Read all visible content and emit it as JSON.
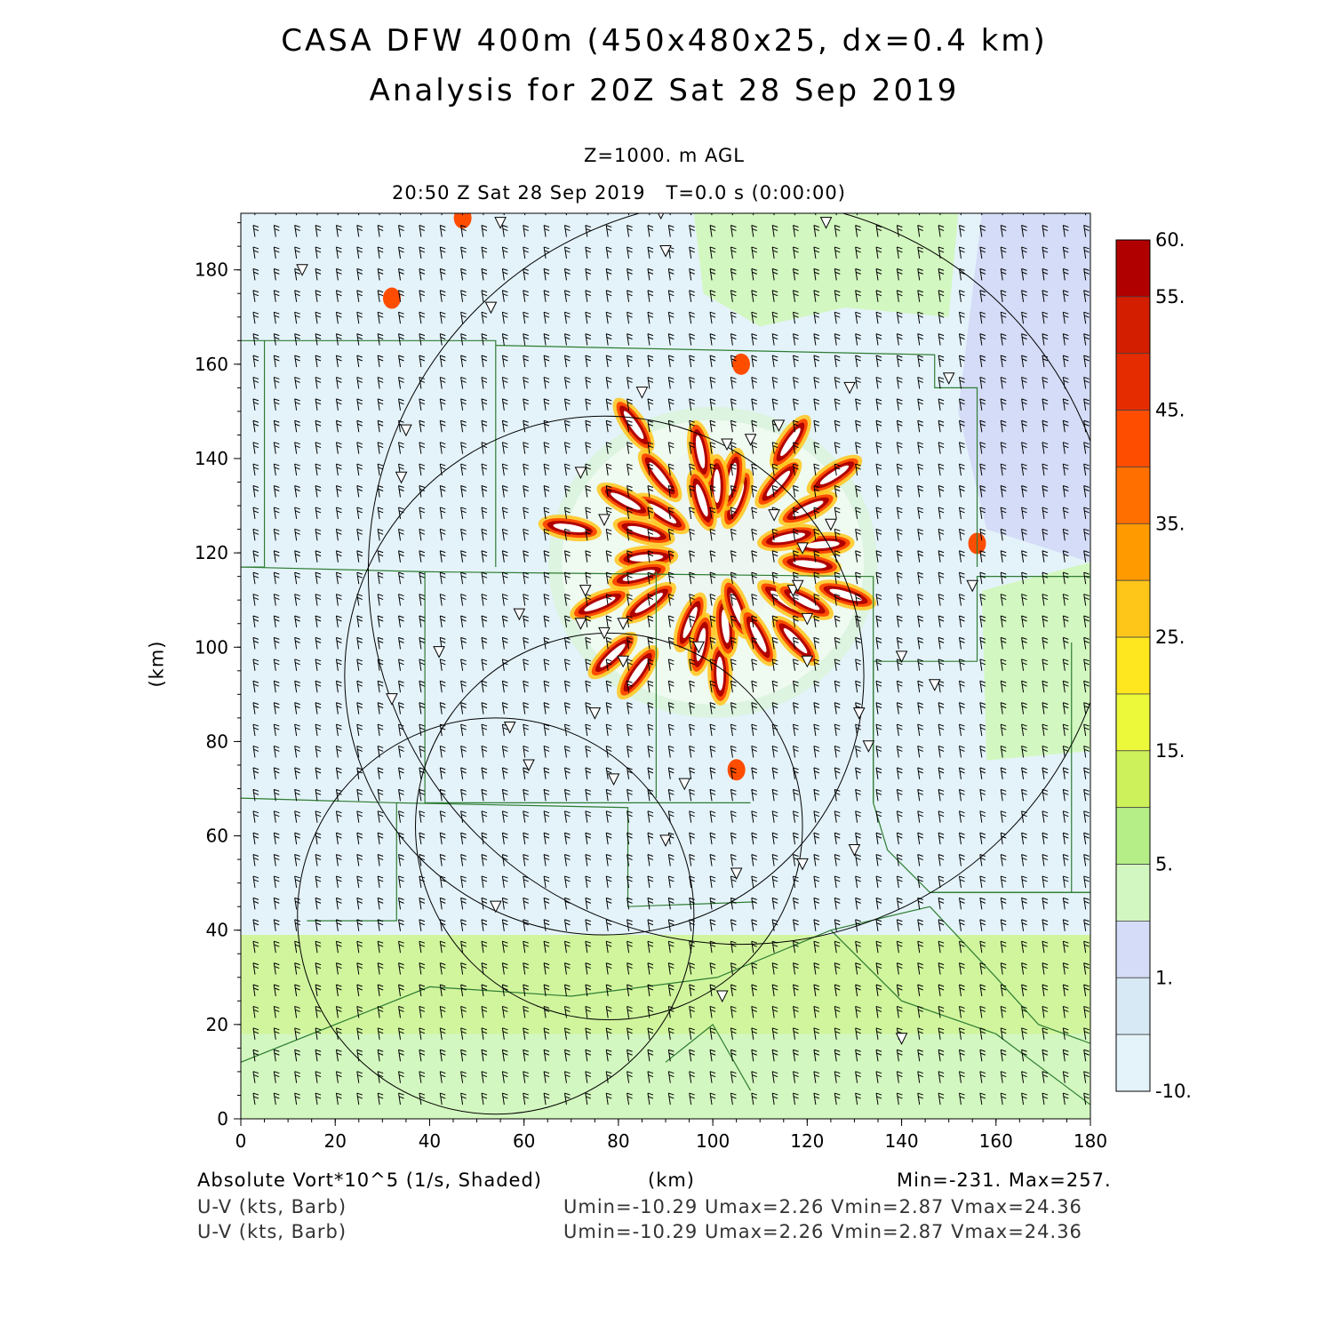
{
  "title": {
    "line1": "CASA DFW 400m (450x480x25, dx=0.4 km)",
    "line2": "Analysis for 20Z Sat 28 Sep 2019"
  },
  "subtitle": {
    "level": "Z=1000. m AGL",
    "time": "20:50 Z Sat 28 Sep 2019   T=0.0 s (0:00:00)"
  },
  "chart_data": {
    "type": "heatmap",
    "xlabel": "(km)",
    "ylabel": "(km)",
    "xlim": [
      0,
      180
    ],
    "ylim": [
      0,
      192
    ],
    "xticks": [
      "0",
      "20",
      "40",
      "60",
      "80",
      "100",
      "120",
      "140",
      "160",
      "180"
    ],
    "yticks": [
      "0",
      "20",
      "40",
      "60",
      "80",
      "100",
      "120",
      "140",
      "160",
      "180"
    ],
    "colorbar": {
      "labels": [
        "60.",
        "55.",
        "45.",
        "35.",
        "25.",
        "15.",
        "5.",
        "1.",
        "-10."
      ],
      "colors": [
        "#b00000",
        "#d41e00",
        "#e52c00",
        "#ff4d00",
        "#ff6f00",
        "#ff9a00",
        "#ffc61a",
        "#ffe71f",
        "#ecf83a",
        "#cdf15b",
        "#b5ee86",
        "#d3f7c0",
        "#d5dcf7",
        "#d8e9f6",
        "#e4f3fa"
      ]
    },
    "field_stats": "Min=-231. Max=257."
  },
  "footer": {
    "var1": "Absolute Vort*10^5 (1/s, Shaded)",
    "units": "(km)",
    "minmax": "Min=-231. Max=257.",
    "var2": "U-V (kts, Barb)",
    "stats2": "Umin=-10.29 Umax=2.26 Vmin=2.87 Vmax=24.36",
    "var3": "U-V (kts, Barb)",
    "stats3": "Umin=-10.29 Umax=2.26 Vmin=2.87 Vmax=24.36"
  }
}
